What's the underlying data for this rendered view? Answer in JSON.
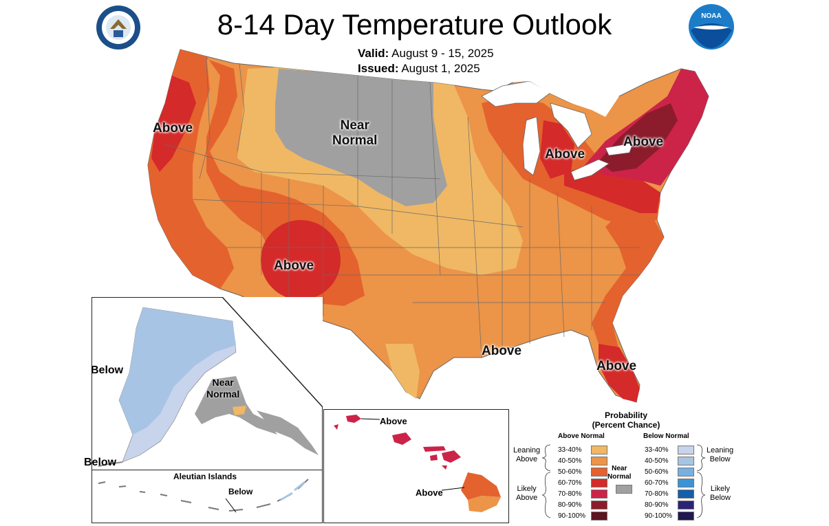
{
  "header": {
    "title": "8-14 Day Temperature Outlook",
    "valid_label": "Valid:",
    "valid_value": "August 9 - 15, 2025",
    "issued_label": "Issued:",
    "issued_value": "August 1, 2025"
  },
  "logos": {
    "left_icon": "department-of-commerce-seal",
    "right_icon": "noaa-logo",
    "noaa_text": "NOAA"
  },
  "map_labels": {
    "near_normal": "Near Normal",
    "near_line1": "Near",
    "near_line2": "Normal",
    "above_northwest": "Above",
    "above_southwest": "Above",
    "above_great_lakes": "Above",
    "above_northeast": "Above",
    "above_gulf": "Above",
    "above_florida": "Above"
  },
  "alaska": {
    "below_west": "Below",
    "below_south": "Below",
    "near_line1": "Near",
    "near_line2": "Normal",
    "aleutian_title": "Aleutian Islands",
    "aleutian_below": "Below"
  },
  "hawaii": {
    "above_north": "Above",
    "above_south": "Above"
  },
  "legend": {
    "title_line1": "Probability",
    "title_line2": "(Percent Chance)",
    "above_header": "Above Normal",
    "below_header": "Below Normal",
    "leaning_above": [
      "Leaning",
      "Above"
    ],
    "likely_above": [
      "Likely",
      "Above"
    ],
    "leaning_below": [
      "Leaning",
      "Below"
    ],
    "likely_below": [
      "Likely",
      "Below"
    ],
    "near_normal": [
      "Near",
      "Normal"
    ],
    "above_bins": [
      {
        "label": "33-40%",
        "color": "#f0b864"
      },
      {
        "label": "40-50%",
        "color": "#ec9448"
      },
      {
        "label": "50-60%",
        "color": "#e4622e"
      },
      {
        "label": "60-70%",
        "color": "#d42a2a"
      },
      {
        "label": "70-80%",
        "color": "#cc2448"
      },
      {
        "label": "80-90%",
        "color": "#8c1c2c"
      },
      {
        "label": "90-100%",
        "color": "#5c1420"
      }
    ],
    "below_bins": [
      {
        "label": "33-40%",
        "color": "#c8d4ec"
      },
      {
        "label": "40-50%",
        "color": "#a8c4e4"
      },
      {
        "label": "50-60%",
        "color": "#78b0e0"
      },
      {
        "label": "60-70%",
        "color": "#3c94d4"
      },
      {
        "label": "70-80%",
        "color": "#1460a8"
      },
      {
        "label": "80-90%",
        "color": "#2c2474"
      },
      {
        "label": "90-100%",
        "color": "#201850"
      }
    ],
    "near_normal_color": "#a0a0a0"
  }
}
